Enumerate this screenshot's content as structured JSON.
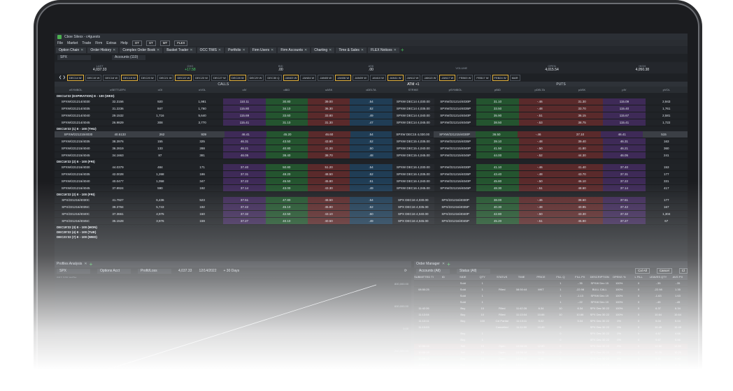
{
  "window": {
    "title": "Cboe Silexx - c4guests"
  },
  "menu": {
    "items": [
      "File",
      "Market",
      "Trade",
      "Firm",
      "Extras",
      "Help"
    ],
    "tools": [
      "OT",
      "ST",
      "MT",
      "FLEX"
    ]
  },
  "tabs": [
    "Option Chain",
    "Order History",
    "Complex Order Book",
    "Basket Trader",
    "OCC TIMS",
    "Portfolio",
    "Firm Users",
    "Firm Accounts",
    "Charting",
    "Time & Sales",
    "FLEX Notices"
  ],
  "selectors": {
    "symbol": "SPX",
    "accounts": "Accounts (110)"
  },
  "quote": [
    {
      "label": "LAST",
      "value": "4,037.33",
      "type": ""
    },
    {
      "label": "CHG",
      "value": "+17.58",
      "type": "pos"
    },
    {
      "label": "BID",
      "value": ".00",
      "type": ""
    },
    {
      "label": "ASK",
      "value": ".00",
      "type": ""
    },
    {
      "label": "VOLUME",
      "value": "",
      "type": ""
    },
    {
      "label": "OPEN",
      "value": "4,015.54",
      "type": ""
    },
    {
      "label": "HIGH",
      "value": "4,050.38",
      "type": ""
    }
  ],
  "expirations": [
    "DEC14 W",
    "DEC15 W",
    "DEC16 W",
    "DEC19 W",
    "DEC20 W",
    "DEC21 W",
    "DEC22 W",
    "DEC23 W",
    "DEC27 W",
    "DEC28 W",
    "DEC29 W",
    "DEC30 Q",
    "JAN03 W",
    "JAN04 W",
    "JAN05 W",
    "JAN06 W",
    "JAN09 W",
    "JAN10 W",
    "JAN11 W",
    "JAN12 W",
    "JAN13 W",
    "JAN17 W",
    "FEB03 W",
    "FEB17 W",
    "FEB24 W",
    "MAR"
  ],
  "headers": {
    "calls": "CALLS",
    "puts": "PUTS",
    "atm": "ATM +1"
  },
  "columns": [
    "oSYMBOL",
    "oSETTLEPX",
    "oOI",
    "oVOL",
    "oIV",
    "oBID",
    "oASK",
    "oDELTA",
    "STRIKE",
    "pSYMBOL",
    "pBID",
    "pDELTA",
    "pASK",
    "pIV",
    "pVOL"
  ],
  "groups": [
    {
      "name": "DEC14'22 (EXPIRATION) E - 100 (WED)",
      "rows": [
        [
          "SPXW/221214/4030",
          "32.3156",
          "920",
          "1,981",
          "110.11",
          "30.80",
          "39.00",
          ".54",
          "SPXW DEC14 4,030.00",
          "SPXW/221214/4030P",
          "31.10",
          "-.46",
          "31.30",
          "115.09",
          "2,943"
        ],
        [
          "SPXW/221214/4035",
          "31.2236",
          "847",
          "1,760",
          "115.80",
          "34.10",
          "36.30",
          ".52",
          "SPXW DEC14 4,035.00",
          "SPXW/221214/4035P",
          "33.50",
          "-.48",
          "33.70",
          "115.40",
          "1,761"
        ],
        [
          "SPXW/221214/4040",
          "29.1532",
          "1,716",
          "5,640",
          "115.69",
          "33.60",
          "33.80",
          ".49",
          "SPXW DEC14 4,040.00",
          "SPXW/221214/4040P",
          "35.90",
          "-.51",
          "36.15",
          "115.67",
          "2,581"
        ],
        [
          "SPXW/221214/4045",
          "26.9829",
          "308",
          "3,770",
          "115.41",
          "31.10",
          "31.30",
          ".47",
          "SPXW DEC14 4,045.00",
          "SPXW/221214/4045P",
          "38.50",
          "-.53",
          "38.75",
          "115.41",
          "1,722"
        ]
      ]
    },
    {
      "name": "DEC15'22 (1) E - 100 (THU)",
      "rows": [
        [
          "SPXW/221215/4030",
          "40.5133",
          "262",
          "939",
          "46.41",
          "45.20",
          "46.60",
          ".54",
          "SPXW DEC15 4,030.00",
          "SPXW/221215/4030P",
          "36.50",
          "-.46",
          "37.10",
          "46.41",
          "515"
        ],
        [
          "SPXW/221215/4035",
          "38.3976",
          "155",
          "325",
          "46.31",
          "43.50",
          "43.80",
          ".52",
          "SPXW DEC15 4,035.00",
          "SPXW/221215/4035P",
          "39.10",
          "-.48",
          "39.40",
          "46.31",
          "163"
        ],
        [
          "SPXW/221215/4040",
          "36.2819",
          "133",
          "288",
          "46.21",
          "40.80",
          "41.20",
          ".50",
          "SPXW DEC15 4,040.00",
          "SPXW/221215/4040P",
          "41.50",
          "-.50",
          "41.80",
          "46.21",
          "360"
        ],
        [
          "SPXW/221215/4045",
          "34.1663",
          "87",
          "381",
          "46.05",
          "38.40",
          "38.70",
          ".48",
          "SPXW DEC15 4,045.00",
          "SPXW/221215/4045P",
          "44.00",
          "-.52",
          "44.30",
          "46.05",
          "241"
        ]
      ]
    },
    {
      "name": "DEC16'22 (2) E - 100 (FRI)",
      "rows": [
        [
          "SPXW/221216/4030",
          "44.0379",
          "484",
          "171",
          "37.40",
          "50.80",
          "51.20",
          ".54",
          "SPXW DEC16 4,030.00",
          "SPXW/221216/4030P",
          "41.10",
          "-.46",
          "41.40",
          "37.40",
          "153"
        ],
        [
          "SPXW/221216/4035",
          "42.0028",
          "1,268",
          "186",
          "37.31",
          "48.20",
          "48.50",
          ".52",
          "SPXW DEC16 4,035.00",
          "SPXW/221216/4035P",
          "43.40",
          "-.48",
          "43.70",
          "37.31",
          "177"
        ],
        [
          "SPXW/221216/4040",
          "40.0477",
          "1,058",
          "347",
          "37.22",
          "45.50",
          "45.80",
          ".51",
          "SPXW DEC16 4,040.00",
          "SPXW/221216/4040P",
          "45.80",
          "-.50",
          "46.10",
          "37.22",
          "331"
        ],
        [
          "SPXW/221216/4045",
          "37.8924",
          "590",
          "192",
          "37.14",
          "43.00",
          "43.30",
          ".49",
          "SPXW DEC16 4,045.00",
          "SPXW/221216/4045P",
          "48.30",
          "-.51",
          "48.60",
          "37.14",
          "417"
        ]
      ]
    },
    {
      "name": "DEC16'22 (2) E - 100 (FRI)",
      "rows": [
        [
          "SPX/221216/4030C",
          "41.7927",
          "6,436",
          "523",
          "37.51",
          "47.80",
          "48.50",
          ".54",
          "SPX DEC16 4,030.00",
          "SPX/221216/4030P",
          "38.00",
          "-.46",
          "38.60",
          "37.51",
          "177"
        ],
        [
          "SPX/221216/4035C",
          "39.3784",
          "5,743",
          "192",
          "37.42",
          "45.10",
          "45.80",
          ".52",
          "SPX DEC16 4,035.00",
          "SPX/221216/4035P",
          "40.30",
          "-.48",
          "40.95",
          "37.42",
          "167"
        ],
        [
          "SPX/221216/4040C",
          "37.3661",
          "4,975",
          "150",
          "37.32",
          "42.50",
          "43.10",
          ".50",
          "SPX DEC16 4,040.00",
          "SPX/221216/4040P",
          "42.80",
          "-.50",
          "43.30",
          "37.32",
          "1,304"
        ],
        [
          "SPX/221216/4045C",
          "35.1528",
          "3,976",
          "159",
          "37.27",
          "40.10",
          "40.50",
          ".49",
          "SPX DEC16 4,045.00",
          "SPX/221216/4045P",
          "45.20",
          "-.51",
          "45.90",
          "37.27",
          "67"
        ]
      ]
    }
  ],
  "collapsed_groups": [
    "DEC19'22 (3) E - 100 (MON)",
    "DEC20'22 (4) E - 100 (TUE)",
    "DEC21'22 (7) E - 100 (WED)"
  ],
  "left_panel": {
    "tab": "Profiles Analysis",
    "symbol": "SPX",
    "account": "Options Acct",
    "mode": "Profit/Loss",
    "price": "4,037.33",
    "date": "12/14/2022",
    "days": "+ 30 Days",
    "legend": "SET DTE WITH",
    "axis": [
      "800,000.00",
      "600,000.00",
      "0.00",
      "-200,000.00",
      "-400,000.00"
    ]
  },
  "right_panel": {
    "tab": "Order Manager",
    "accounts": "Accounts (All)",
    "status": "Status (All)",
    "filters": [
      "Cxl All",
      "Cancel",
      "Cl"
    ],
    "columns": [
      "SUBMITTED TI",
      "ID",
      "SIDE",
      "QTY",
      "STATUS",
      "TIME",
      "PRICE",
      "FILL Q",
      "FILL PX",
      "DESCRIPTION",
      "OPENS %",
      "L FILL",
      "LEAVES QTY",
      "AVG PX"
    ],
    "rows": [
      {
        "cls": "",
        "cells": [
          "",
          "",
          "Sold",
          "1",
          "",
          "",
          "",
          "1",
          "-.35",
          "SPXW Dec 15 22 4,020 Call",
          "100%",
          "0",
          "-.35",
          "-.35"
        ]
      },
      {
        "cls": "",
        "cells": [
          "08:50:25",
          "",
          "Sold",
          "1",
          "Filled",
          "08:50:44",
          "MKT",
          "1",
          "-22.98",
          "BULL CALL SPXW DC 23 MON",
          "100%",
          "0",
          "-22.98",
          "1.35"
        ]
      },
      {
        "cls": "",
        "cells": [
          "",
          "",
          "Sold",
          "1",
          "",
          "",
          "",
          "1",
          "-1.13",
          "SPXW Dec 19 22 4,025 Call",
          "100%",
          "0",
          "-1.63",
          "1.63"
        ]
      },
      {
        "cls": "",
        "cells": [
          "",
          "",
          "Sold",
          "1",
          "",
          "",
          "",
          "1",
          "-.22",
          "SPXW Dec 19 22 4,030 Call",
          "100%",
          "0",
          "-.45",
          "-.45"
        ]
      },
      {
        "cls": "",
        "cells": [
          "11:42:26",
          "",
          "Buy",
          "10",
          "Filled",
          "11:42:26",
          "6.34",
          "10",
          "6.34",
          "SPX Dec 30 22 4000 Call",
          "100%",
          "0",
          "6.37",
          "6.34"
        ]
      },
      {
        "cls": "",
        "cells": [
          "11:13:04",
          "",
          "Buy",
          "10",
          "Filled",
          "11:13:04",
          "10.66",
          "10",
          "10.66",
          "SPX Dec 30 22 4050 Call",
          "100%",
          "0",
          "10.64",
          "10.64"
        ]
      },
      {
        "cls": "",
        "cells": [
          "11:13:11",
          "",
          "Buy",
          "100",
          "Cxl Partial",
          "11:13:11",
          "5.02",
          "",
          "5.04",
          "SPX Dec 30 22 4075 Call",
          "0%",
          "0",
          "5.04",
          "5.04"
        ]
      },
      {
        "cls": "",
        "cells": [
          "11:13:03",
          "",
          "",
          "",
          "Cancelled",
          "11:11:50",
          "10.49",
          "0",
          "",
          "SPX Dec 30 22 4035 Call",
          "0%",
          "0",
          "10.49",
          "10.49"
        ]
      },
      {
        "cls": "",
        "cells": [
          "",
          "",
          "Buy",
          "1",
          "",
          "",
          "",
          "0",
          "",
          "SPX Dec 30 22 4035 Call",
          "0%",
          "0",
          "4.67",
          "4.66"
        ]
      },
      {
        "cls": "",
        "cells": [
          "",
          "",
          "Buy",
          "1",
          "",
          "",
          "",
          "0",
          "",
          "SPX Dec 30 22 4050 Call",
          "0%",
          "0",
          "5.67",
          "5.66"
        ]
      },
      {
        "cls": "om-red",
        "cells": [
          "10:56:15",
          "",
          "Sell",
          "10",
          "Open",
          "10:56:15",
          "12.50",
          "0",
          "",
          "SPX Dec 30 22 4000 Put",
          "0%",
          "0",
          "12.50",
          "12.50"
        ]
      },
      {
        "cls": "om-red",
        "cells": [
          "10:56:18",
          "",
          "Sell",
          "10",
          "Open",
          "10:56:18",
          "10.25",
          "0",
          "",
          "SPX Dec 30 22 4025 Put",
          "0%",
          "0",
          "10.25",
          "10.25"
        ]
      },
      {
        "cls": "om-green",
        "cells": [
          "10:56:22",
          "",
          "Buy",
          "10",
          "Open",
          "10:56:22",
          "9.40",
          "0",
          "",
          "SPX Dec 30 22 4050 Call",
          "0%",
          "0",
          "9.40",
          "9.40"
        ]
      },
      {
        "cls": "om-green",
        "cells": [
          "10:56:30",
          "",
          "Buy",
          "10",
          "Open",
          "10:56:30",
          "8.75",
          "0",
          "",
          "SPX Dec 30 22 4075 Call",
          "0%",
          "0",
          "8.75",
          "8.75"
        ]
      },
      {
        "cls": "om-green",
        "cells": [
          "10:57:02",
          "",
          "Buy",
          "5",
          "Open",
          "10:57:02",
          "7.60",
          "0",
          "",
          "SPX Dec 30 22 4100 Call",
          "0%",
          "0",
          "7.60",
          "7.60"
        ]
      },
      {
        "cls": "om-red",
        "cells": [
          "10:57:10",
          "",
          "Sell",
          "5",
          "Open",
          "10:57:10",
          "6.95",
          "0",
          "",
          "SPX Dec 30 22 3975 Put",
          "0%",
          "0",
          "6.95",
          "6.95"
        ]
      }
    ]
  }
}
